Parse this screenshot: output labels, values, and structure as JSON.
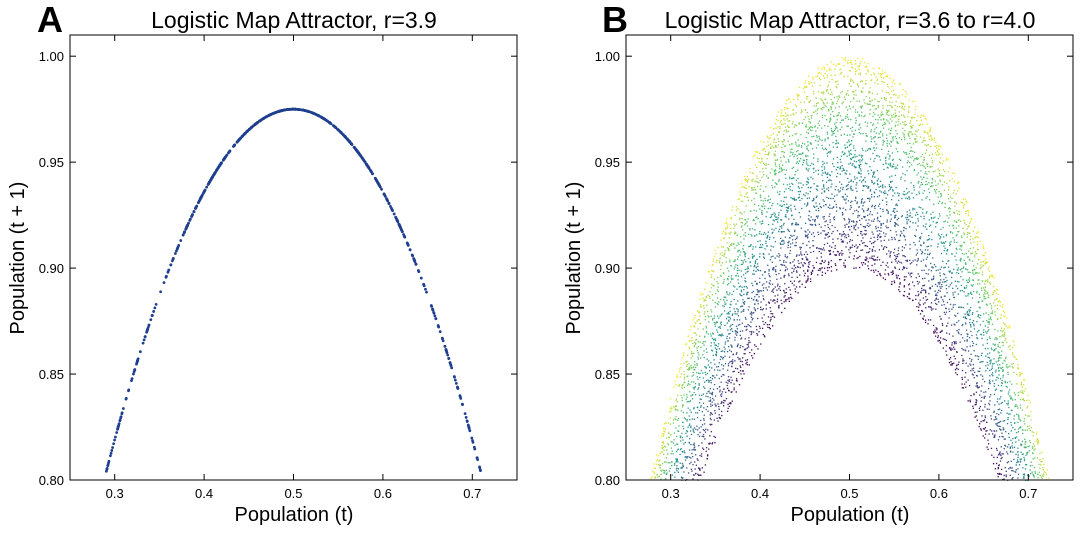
{
  "chart_data": [
    {
      "type": "scatter",
      "panel_label": "A",
      "title": "Logistic Map Attractor, r=3.9",
      "xlabel": "Population (t)",
      "ylabel": "Population (t + 1)",
      "xlim": [
        0.25,
        0.75
      ],
      "ylim": [
        0.8,
        1.01
      ],
      "xticks": [
        "0.3",
        "0.4",
        "0.5",
        "0.6",
        "0.7"
      ],
      "yticks": [
        "0.80",
        "0.85",
        "0.90",
        "0.95",
        "1.00"
      ],
      "grid": false,
      "color": "#1f3f8f",
      "series": [
        {
          "r": 3.9,
          "relation": "y = r * x * (1 - x)",
          "x_range": [
            0.29,
            0.71
          ]
        }
      ]
    },
    {
      "type": "scatter",
      "panel_label": "B",
      "title": "Logistic Map Attractor, r=3.6 to r=4.0",
      "xlabel": "Population (t)",
      "ylabel": "Population (t + 1)",
      "xlim": [
        0.25,
        0.75
      ],
      "ylim": [
        0.8,
        1.01
      ],
      "xticks": [
        "0.3",
        "0.4",
        "0.5",
        "0.6",
        "0.7"
      ],
      "yticks": [
        "0.80",
        "0.85",
        "0.90",
        "0.95",
        "1.00"
      ],
      "grid": false,
      "colormap": [
        "#440154",
        "#3b528b",
        "#21918c",
        "#5ec962",
        "#fde725"
      ],
      "series": [
        {
          "r_range": [
            3.6,
            4.0
          ],
          "relation": "y = r * x * (1 - x)",
          "x_range": [
            0.27,
            0.73
          ]
        }
      ]
    }
  ]
}
